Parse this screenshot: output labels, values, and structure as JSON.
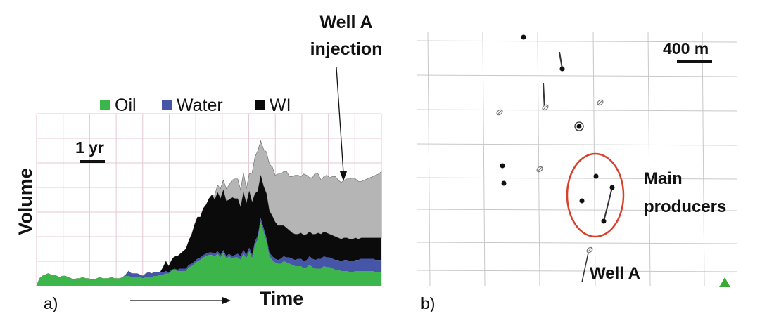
{
  "panel_a": {
    "caption": "a)",
    "chart_data": {
      "type": "area",
      "stacked": true,
      "title": "",
      "xlabel": "Time",
      "ylabel": "Volume",
      "legend_position": "top",
      "grid": true,
      "scale_bar_label": "1 yr",
      "annotation": "Well A injection",
      "x": [
        0,
        1,
        2,
        3,
        4,
        5,
        6,
        7,
        8,
        9,
        10,
        11,
        12,
        13,
        14,
        15,
        16,
        17,
        18,
        19,
        20,
        21,
        22,
        23,
        24,
        25,
        26,
        27,
        28,
        29,
        30,
        31,
        32,
        33,
        34,
        35,
        36,
        37,
        38,
        39,
        40,
        41,
        42,
        43,
        44,
        45,
        46,
        47,
        48,
        49,
        50,
        51,
        52,
        53,
        54,
        55,
        56,
        57,
        58,
        59,
        60,
        61,
        62,
        63,
        64,
        65,
        66,
        67,
        68,
        69,
        70,
        71,
        72,
        73,
        74,
        75,
        76,
        77,
        78,
        79,
        80,
        81,
        82,
        83,
        84,
        85,
        86,
        87,
        88,
        89,
        90,
        91,
        92,
        93,
        94,
        95,
        96,
        97,
        98,
        99,
        100,
        101,
        102,
        103,
        104,
        105,
        106,
        107,
        108,
        109,
        110,
        111,
        112,
        113,
        114,
        115,
        116,
        117,
        118,
        119,
        120
      ],
      "series": [
        {
          "name": "Oil",
          "color": "#3cb54a",
          "values": [
            0.0,
            6.0,
            8.0,
            9.0,
            10.0,
            9.0,
            9.0,
            8.0,
            7.0,
            8.0,
            8.0,
            7.0,
            6.0,
            5.0,
            6.0,
            6.0,
            7.0,
            6.0,
            6.0,
            5.0,
            5.0,
            6.0,
            7.0,
            6.0,
            6.0,
            6.0,
            7.0,
            6.0,
            6.0,
            6.0,
            7.0,
            8.0,
            8.0,
            7.0,
            7.0,
            7.0,
            7.0,
            6.0,
            7.0,
            7.0,
            7.0,
            8.0,
            8.0,
            9.0,
            9.0,
            10.0,
            10.0,
            12.0,
            13.0,
            12.0,
            12.0,
            12.0,
            12.0,
            15.0,
            16.0,
            18.0,
            20.0,
            21.0,
            23.0,
            24.0,
            25.0,
            25.0,
            24.0,
            26.0,
            23.0,
            27.0,
            22.0,
            24.0,
            22.0,
            23.0,
            23.0,
            21.0,
            26.0,
            22.0,
            28.0,
            22.0,
            33.0,
            38.0,
            52.0,
            44.0,
            36.0,
            24.0,
            21.0,
            19.0,
            18.0,
            18.0,
            20.0,
            19.0,
            18.0,
            17.0,
            16.0,
            16.0,
            16.0,
            14.0,
            15.0,
            17.0,
            15.0,
            14.0,
            14.0,
            14.0,
            16.0,
            15.0,
            15.0,
            14.0,
            13.0,
            13.0,
            12.0,
            12.0,
            12.0,
            11.0,
            11.0,
            12.0,
            12.0,
            12.0,
            12.0,
            12.0,
            12.0,
            12.0,
            11.0,
            11.0,
            11.0
          ]
        },
        {
          "name": "Water",
          "color": "#4556a8",
          "values": [
            0.0,
            0.0,
            0.0,
            0.0,
            0.0,
            0.0,
            0.0,
            0.0,
            0.0,
            0.0,
            0.0,
            0.0,
            0.0,
            0.0,
            0.0,
            0.0,
            0.0,
            0.0,
            0.0,
            0.0,
            0.0,
            0.0,
            0.0,
            0.0,
            0.0,
            0.0,
            0.0,
            0.0,
            0.0,
            0.0,
            0.0,
            1.0,
            4.0,
            3.0,
            3.0,
            3.0,
            2.0,
            2.0,
            3.0,
            4.0,
            3.0,
            3.0,
            3.0,
            2.0,
            2.0,
            2.0,
            1.0,
            1.0,
            1.0,
            1.0,
            2.0,
            2.0,
            2.0,
            2.0,
            2.0,
            2.0,
            2.0,
            2.0,
            2.0,
            2.0,
            2.0,
            2.0,
            2.0,
            2.0,
            2.0,
            2.0,
            2.0,
            2.0,
            2.0,
            2.0,
            3.0,
            3.0,
            3.0,
            3.0,
            3.0,
            3.0,
            3.0,
            3.0,
            3.0,
            3.0,
            3.0,
            3.0,
            3.0,
            3.0,
            3.0,
            4.0,
            4.0,
            4.0,
            5.0,
            5.0,
            5.0,
            6.0,
            6.0,
            6.0,
            6.0,
            7.0,
            7.0,
            7.0,
            8.0,
            8.0,
            8.0,
            8.0,
            8.0,
            8.0,
            8.0,
            8.0,
            8.0,
            9.0,
            9.0,
            9.0,
            9.0,
            9.0,
            9.0,
            10.0,
            10.0,
            10.0,
            10.0,
            10.0,
            10.0,
            10.0,
            10.0
          ]
        },
        {
          "name": "WI",
          "color": "#0b0b0b",
          "values": [
            0.0,
            0.0,
            0.0,
            0.0,
            0.0,
            0.0,
            0.0,
            0.0,
            0.0,
            0.0,
            0.0,
            0.0,
            0.0,
            0.0,
            0.0,
            0.0,
            0.0,
            0.0,
            0.0,
            0.0,
            0.0,
            0.0,
            0.0,
            0.0,
            0.0,
            0.0,
            0.0,
            0.0,
            0.0,
            0.0,
            0.0,
            0.0,
            0.0,
            0.0,
            0.0,
            0.0,
            0.0,
            0.0,
            0.0,
            0.0,
            0.0,
            0.0,
            0.0,
            0.0,
            4.0,
            8.0,
            5.0,
            8.0,
            10.0,
            11.0,
            12.0,
            14.0,
            16.0,
            20.0,
            24.0,
            30.0,
            34.0,
            33.0,
            38.0,
            40.0,
            44.0,
            47.0,
            44.0,
            48.0,
            46.0,
            49.0,
            45.0,
            44.0,
            48.0,
            46.0,
            45.0,
            40.0,
            47.0,
            42.0,
            46.0,
            43.0,
            39.0,
            36.0,
            35.0,
            34.0,
            36.0,
            34.0,
            33.0,
            30.0,
            28.0,
            27.0,
            25.0,
            24.0,
            22.0,
            21.0,
            21.0,
            20.0,
            21.0,
            21.0,
            21.0,
            20.0,
            20.0,
            21.0,
            21.0,
            20.0,
            20.0,
            20.0,
            19.0,
            19.0,
            19.0,
            18.0,
            18.0,
            18.0,
            18.0,
            18.0,
            18.0,
            18.0,
            17.0,
            17.0,
            17.0,
            17.0,
            17.0,
            17.0,
            18.0,
            18.0,
            18.0
          ]
        },
        {
          "name": "",
          "color": "#b5b5b5",
          "values": [
            0.0,
            0.0,
            0.0,
            0.0,
            0.0,
            0.0,
            0.0,
            0.0,
            0.0,
            0.0,
            0.0,
            0.0,
            0.0,
            0.0,
            0.0,
            0.0,
            0.0,
            0.0,
            0.0,
            0.0,
            0.0,
            0.0,
            0.0,
            0.0,
            0.0,
            0.0,
            0.0,
            0.0,
            0.0,
            0.0,
            0.0,
            0.0,
            0.0,
            0.0,
            0.0,
            0.0,
            0.0,
            0.0,
            0.0,
            0.0,
            0.0,
            0.0,
            0.0,
            0.0,
            0.0,
            0.0,
            0.0,
            0.0,
            0.0,
            0.0,
            0.0,
            0.0,
            0.0,
            0.0,
            0.0,
            0.0,
            0.0,
            0.0,
            0.0,
            0.0,
            0.0,
            0.0,
            4.0,
            6.0,
            8.0,
            8.0,
            10.0,
            12.0,
            14.0,
            16.0,
            16.0,
            14.0,
            16.0,
            12.0,
            14.0,
            24.0,
            30.0,
            33.0,
            28.0,
            30.0,
            34.0,
            38.0,
            40.0,
            38.0,
            42.0,
            42.0,
            44.0,
            46.0,
            44.0,
            46.0,
            48.0,
            48.0,
            46.0,
            50.0,
            48.0,
            44.0,
            46.0,
            50.0,
            48.0,
            44.0,
            45.0,
            47.0,
            46.0,
            48.0,
            49.0,
            47.0,
            46.0,
            47.0,
            48.0,
            49.0,
            50.0,
            48.0,
            47.0,
            46.0,
            47.0,
            48.0,
            49.0,
            50.0,
            51.0,
            52.0,
            54.0
          ]
        }
      ],
      "ylim": [
        0,
        140
      ]
    }
  },
  "panel_b": {
    "caption": "b)",
    "scale_bar_label": "400 m",
    "main_producers_label": [
      "Main",
      "producers"
    ],
    "well_a_label": "Well A",
    "symbols": {
      "producer": "filled-dot-icon",
      "injector": "injector-icon",
      "highlight": "red-ellipse",
      "marker": "green-triangle-icon"
    },
    "colors": {
      "grid": "#c8c8c8",
      "ellipse": "#d9402b",
      "triangle": "#3aaa35"
    }
  }
}
